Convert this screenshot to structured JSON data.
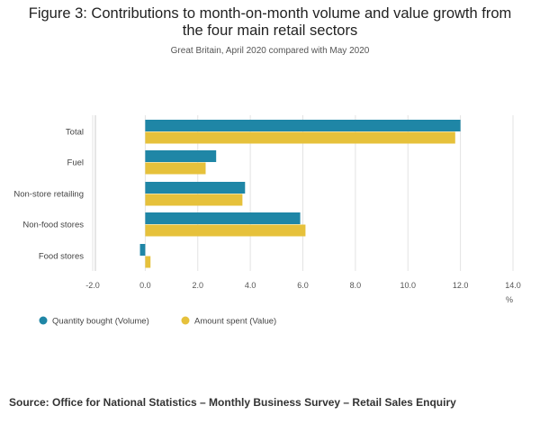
{
  "figure": {
    "title_line1": "Figure 3: Contributions to month-on-month volume and value growth from",
    "title_line2": "the four main retail sectors",
    "subtitle": "Great Britain, April 2020 compared with May 2020",
    "source": "Source: Office for National Statistics – Monthly Business Survey – Retail Sales Enquiry"
  },
  "chart_data": {
    "type": "bar",
    "orientation": "horizontal",
    "title": "Figure 3: Contributions to month-on-month volume and value growth from the four main retail sectors",
    "subtitle": "Great Britain, April 2020 compared with May 2020",
    "categories": [
      "Total",
      "Fuel",
      "Non-store retailing",
      "Non-food stores",
      "Food stores"
    ],
    "series": [
      {
        "name": "Quantity bought (Volume)",
        "color": "#1f86a6",
        "values": [
          12.0,
          2.7,
          3.8,
          5.9,
          -0.2
        ]
      },
      {
        "name": "Amount spent (Value)",
        "color": "#e6c13b",
        "values": [
          11.8,
          2.3,
          3.7,
          6.1,
          0.2
        ]
      }
    ],
    "xlabel": "%",
    "ylabel": "",
    "xlim": [
      -2.0,
      14.0
    ],
    "ticks": [
      "-2.0",
      "0.0",
      "2.0",
      "4.0",
      "6.0",
      "8.0",
      "10.0",
      "12.0",
      "14.0"
    ],
    "grid": true,
    "legend": "bottom-left"
  }
}
